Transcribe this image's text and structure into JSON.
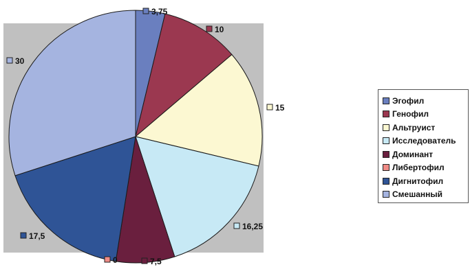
{
  "chart_data": {
    "type": "pie",
    "categories": [
      "Эгофил",
      "Генофил",
      "Альтруист",
      "Исследователь",
      "Доминант",
      "Либертофил",
      "Дигнитофил",
      "Смешанный"
    ],
    "values": [
      3.75,
      10,
      15,
      16.25,
      7.5,
      0,
      17.5,
      30
    ],
    "data_labels": [
      "3,75",
      "10",
      "15",
      "16,25",
      "7,5",
      "0",
      "17,5",
      "30"
    ],
    "colors": [
      "#6a7fbf",
      "#9b3850",
      "#fcf8d2",
      "#c7e9f5",
      "#6a1f3e",
      "#ef8b86",
      "#2f5496",
      "#a5b4e0"
    ],
    "legend_position": "right",
    "plot_area_background": "#c0c0c0",
    "legend": {
      "items": [
        {
          "label": "Эгофил",
          "color": "#6a7fbf"
        },
        {
          "label": "Генофил",
          "color": "#9b3850"
        },
        {
          "label": "Альтруист",
          "color": "#fcf8d2"
        },
        {
          "label": "Исследователь",
          "color": "#c7e9f5"
        },
        {
          "label": "Доминант",
          "color": "#6a1f3e"
        },
        {
          "label": "Либертофил",
          "color": "#ef8b86"
        },
        {
          "label": "Дигнитофил",
          "color": "#2f5496"
        },
        {
          "label": "Смешанный",
          "color": "#a5b4e0"
        }
      ]
    }
  }
}
